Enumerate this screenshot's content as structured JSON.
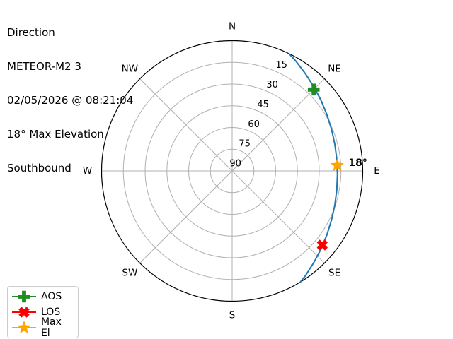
{
  "header": {
    "lines": [
      "Direction",
      "METEOR-M2 3",
      "02/05/2026 @ 08:21:04",
      "18° Max Elevation",
      "Southbound"
    ]
  },
  "chart_data": {
    "type": "line",
    "projection": "polar",
    "description": "Satellite pass sky track: azimuth/elevation polar plot, north at top, horizon (0°) at outer edge, zenith (90°) at center",
    "compass_labels": [
      "N",
      "NE",
      "E",
      "SE",
      "S",
      "SW",
      "W",
      "NW"
    ],
    "elevation_ring_ticks": [
      15,
      30,
      45,
      60,
      75,
      90
    ],
    "radial_axis": {
      "horizon_deg": 0,
      "zenith_deg": 90
    },
    "grid": true,
    "track": {
      "name": "pass-track",
      "color": "#1f77b4",
      "points_az_el": [
        [
          25.8,
          0
        ],
        [
          30.3,
          2.5
        ],
        [
          37.0,
          6.0
        ],
        [
          44.1,
          9.1
        ],
        [
          51.5,
          11.7
        ],
        [
          59.2,
          14.0
        ],
        [
          67.2,
          15.7
        ],
        [
          75.4,
          16.9
        ],
        [
          83.7,
          17.4
        ],
        [
          92.0,
          17.4
        ],
        [
          100.3,
          16.7
        ],
        [
          108.5,
          15.4
        ],
        [
          116.4,
          13.6
        ],
        [
          124.1,
          11.2
        ],
        [
          131.4,
          8.4
        ],
        [
          138.4,
          5.3
        ],
        [
          145.0,
          1.8
        ],
        [
          148.5,
          0
        ]
      ]
    },
    "markers": [
      {
        "id": "aos",
        "label": "AOS",
        "shape": "plus",
        "color": "#228B22",
        "az": 45.0,
        "el": 10.5
      },
      {
        "id": "los",
        "label": "LOS",
        "shape": "x",
        "color": "#FF0000",
        "az": 129.5,
        "el": 9.5
      },
      {
        "id": "maxel",
        "label": "Max El",
        "shape": "star",
        "color": "#FFA500",
        "az": 87.0,
        "el": 17.5,
        "annotation": "18°"
      }
    ],
    "legend_position": "lower left"
  },
  "colors": {
    "background": "#ffffff",
    "outline": "#000000",
    "grid": "#b0b0b0",
    "text": "#000000"
  }
}
